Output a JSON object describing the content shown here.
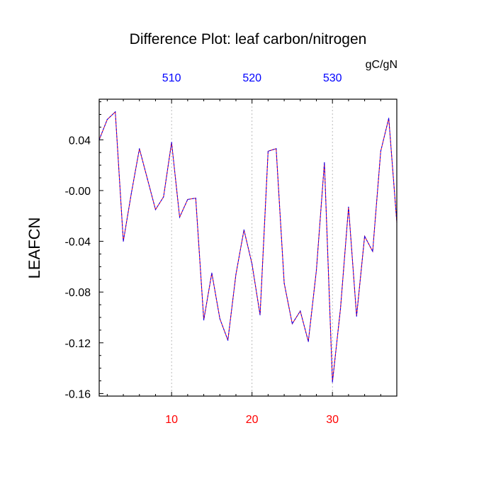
{
  "chart_data": {
    "type": "line",
    "title": "Difference Plot: leaf carbon/nitrogen",
    "units": "gC/gN",
    "ylabel": "LEAFCN",
    "xlabel": "",
    "xlim": [
      1,
      38
    ],
    "ylim": [
      -0.162,
      0.072
    ],
    "grid": "vertical dashed at 10, 20, 30",
    "bottom_ticks": [
      10,
      20,
      30
    ],
    "bottom_tick_labels": [
      "10",
      "20",
      "30"
    ],
    "top_tick_labels": [
      "510",
      "520",
      "530"
    ],
    "y_ticks": [
      0.04,
      0.0,
      -0.04,
      -0.08,
      -0.12,
      -0.16
    ],
    "y_tick_labels": [
      "0.04",
      "-0.00",
      "-0.04",
      "-0.08",
      "-0.12",
      "-0.16"
    ],
    "colors": {
      "bottom_labels": "#ff0000",
      "top_labels": "#0000ff",
      "series_a": "#ff0000",
      "series_b": "#0000ff",
      "grid": "#aaaaaa",
      "axis": "#000000"
    },
    "series": [
      {
        "name": "difference",
        "x": [
          1,
          2,
          3,
          4,
          5,
          6,
          7,
          8,
          9,
          10,
          11,
          12,
          13,
          14,
          15,
          16,
          17,
          18,
          19,
          20,
          21,
          22,
          23,
          24,
          25,
          26,
          27,
          28,
          29,
          30,
          31,
          32,
          33,
          34,
          35,
          36,
          37,
          38
        ],
        "values": [
          0.04,
          0.056,
          0.062,
          -0.04,
          -0.002,
          0.033,
          0.009,
          -0.015,
          -0.005,
          0.038,
          -0.021,
          -0.007,
          -0.006,
          -0.102,
          -0.065,
          -0.101,
          -0.118,
          -0.066,
          -0.031,
          -0.058,
          -0.098,
          0.031,
          0.033,
          -0.073,
          -0.105,
          -0.095,
          -0.119,
          -0.063,
          0.022,
          -0.151,
          -0.093,
          -0.013,
          -0.099,
          -0.036,
          -0.048,
          0.031,
          0.057,
          -0.025
        ]
      }
    ]
  }
}
